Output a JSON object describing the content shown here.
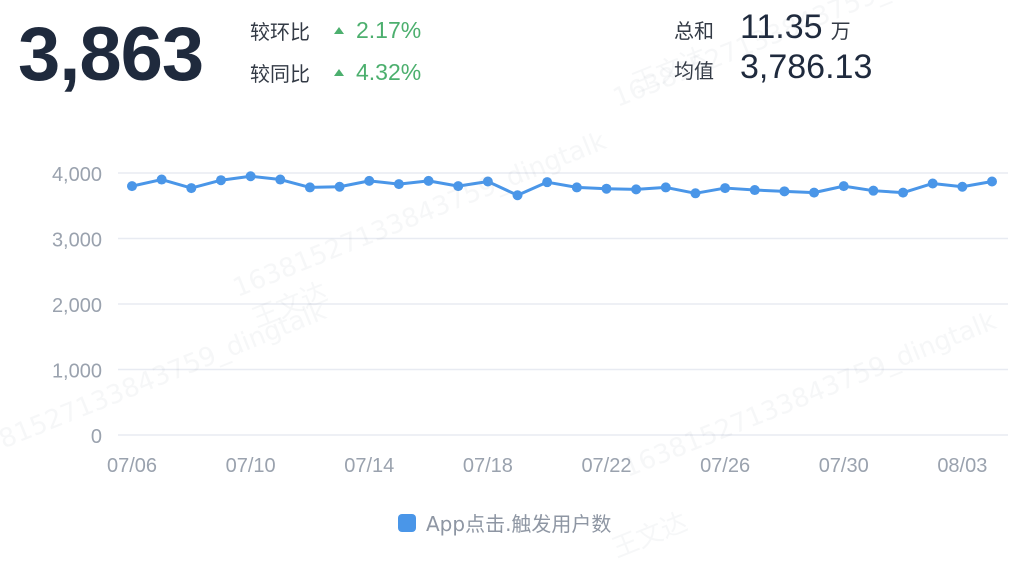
{
  "kpi": {
    "value": "3,863",
    "comparisons": [
      {
        "label": "较环比",
        "value": "2.17%"
      },
      {
        "label": "较同比",
        "value": "4.32%"
      }
    ],
    "stats": [
      {
        "label": "总和",
        "value": "11.35",
        "unit": "万"
      },
      {
        "label": "均值",
        "value": "3,786.13",
        "unit": ""
      }
    ]
  },
  "watermarks": [
    "16381527133843759_dingtalk",
    "王文达"
  ],
  "colors": {
    "series": "#4a96e8",
    "positive": "#4caf6e",
    "grid": "#e8ebf2",
    "axis_text": "#9aa2ae"
  },
  "chart_data": {
    "type": "line",
    "x": [
      "07/06",
      "07/07",
      "07/08",
      "07/09",
      "07/10",
      "07/11",
      "07/12",
      "07/13",
      "07/14",
      "07/15",
      "07/16",
      "07/17",
      "07/18",
      "07/19",
      "07/20",
      "07/21",
      "07/22",
      "07/23",
      "07/24",
      "07/25",
      "07/26",
      "07/27",
      "07/28",
      "07/29",
      "07/30",
      "07/31",
      "08/01",
      "08/02",
      "08/03",
      "08/04"
    ],
    "x_tick_labels": [
      "07/06",
      "07/10",
      "07/14",
      "07/18",
      "07/22",
      "07/26",
      "07/30",
      "08/03"
    ],
    "series": [
      {
        "name": "App点击.触发用户数",
        "values": [
          3800,
          3900,
          3770,
          3890,
          3950,
          3900,
          3780,
          3790,
          3880,
          3830,
          3880,
          3800,
          3870,
          3660,
          3860,
          3780,
          3760,
          3750,
          3780,
          3690,
          3770,
          3740,
          3720,
          3700,
          3800,
          3730,
          3700,
          3840,
          3790,
          3870
        ]
      }
    ],
    "y_ticks": [
      0,
      1000,
      2000,
      3000,
      4000
    ],
    "y_tick_labels": [
      "0",
      "1,000",
      "2,000",
      "3,000",
      "4,000"
    ],
    "ylim": [
      0,
      4000
    ],
    "grid": true,
    "legend": "bottom"
  }
}
